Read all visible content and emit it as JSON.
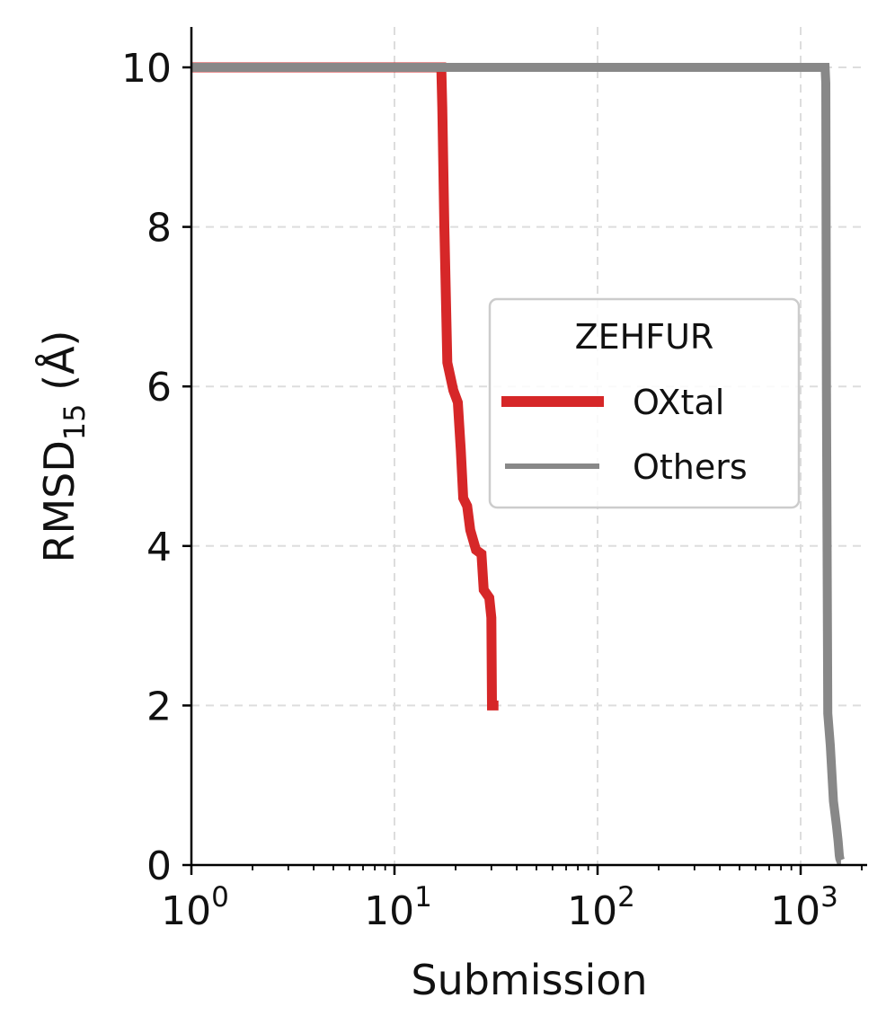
{
  "chart_data": {
    "type": "line",
    "xlabel": "Submission",
    "ylabel": {
      "main": "RMSD",
      "sub": "15",
      "unit": " (Å)"
    },
    "xscale": "log",
    "xlim": [
      1,
      2200
    ],
    "ylim": [
      0,
      10.5
    ],
    "xticks": [
      {
        "value": 1,
        "base": "10",
        "exp": "0"
      },
      {
        "value": 10,
        "base": "10",
        "exp": "1"
      },
      {
        "value": 100,
        "base": "10",
        "exp": "2"
      },
      {
        "value": 1000,
        "base": "10",
        "exp": "3"
      }
    ],
    "yticks": [
      {
        "value": 0,
        "label": "0"
      },
      {
        "value": 2,
        "label": "2"
      },
      {
        "value": 4,
        "label": "4"
      },
      {
        "value": 6,
        "label": "6"
      },
      {
        "value": 8,
        "label": "8"
      },
      {
        "value": 10,
        "label": "10"
      }
    ],
    "grid": true,
    "legend": {
      "title": "ZEHFUR",
      "position": "center-right"
    },
    "series": [
      {
        "name": "OXtal",
        "color": "#d62728",
        "x": [
          1,
          17,
          17.2,
          17.6,
          18.2,
          19.5,
          20.5,
          21.2,
          21.8,
          22.8,
          23.6,
          25.2,
          26.8,
          27.5,
          29.3,
          30.0,
          30.2,
          32.5
        ],
        "y": [
          10,
          10,
          9.5,
          8.0,
          6.3,
          5.95,
          5.8,
          5.2,
          4.6,
          4.5,
          4.2,
          3.95,
          3.9,
          3.45,
          3.35,
          3.1,
          2.0,
          2.0
        ]
      },
      {
        "name": "Others",
        "color": "#888888",
        "x": [
          1,
          1320,
          1330,
          1340,
          1360,
          1400,
          1450,
          1500,
          1530,
          1550,
          1560,
          1570,
          1580
        ],
        "y": [
          10,
          10,
          9.8,
          6.0,
          1.9,
          1.5,
          0.8,
          0.5,
          0.3,
          0.12,
          0.08,
          0.06,
          0.06
        ]
      }
    ]
  }
}
